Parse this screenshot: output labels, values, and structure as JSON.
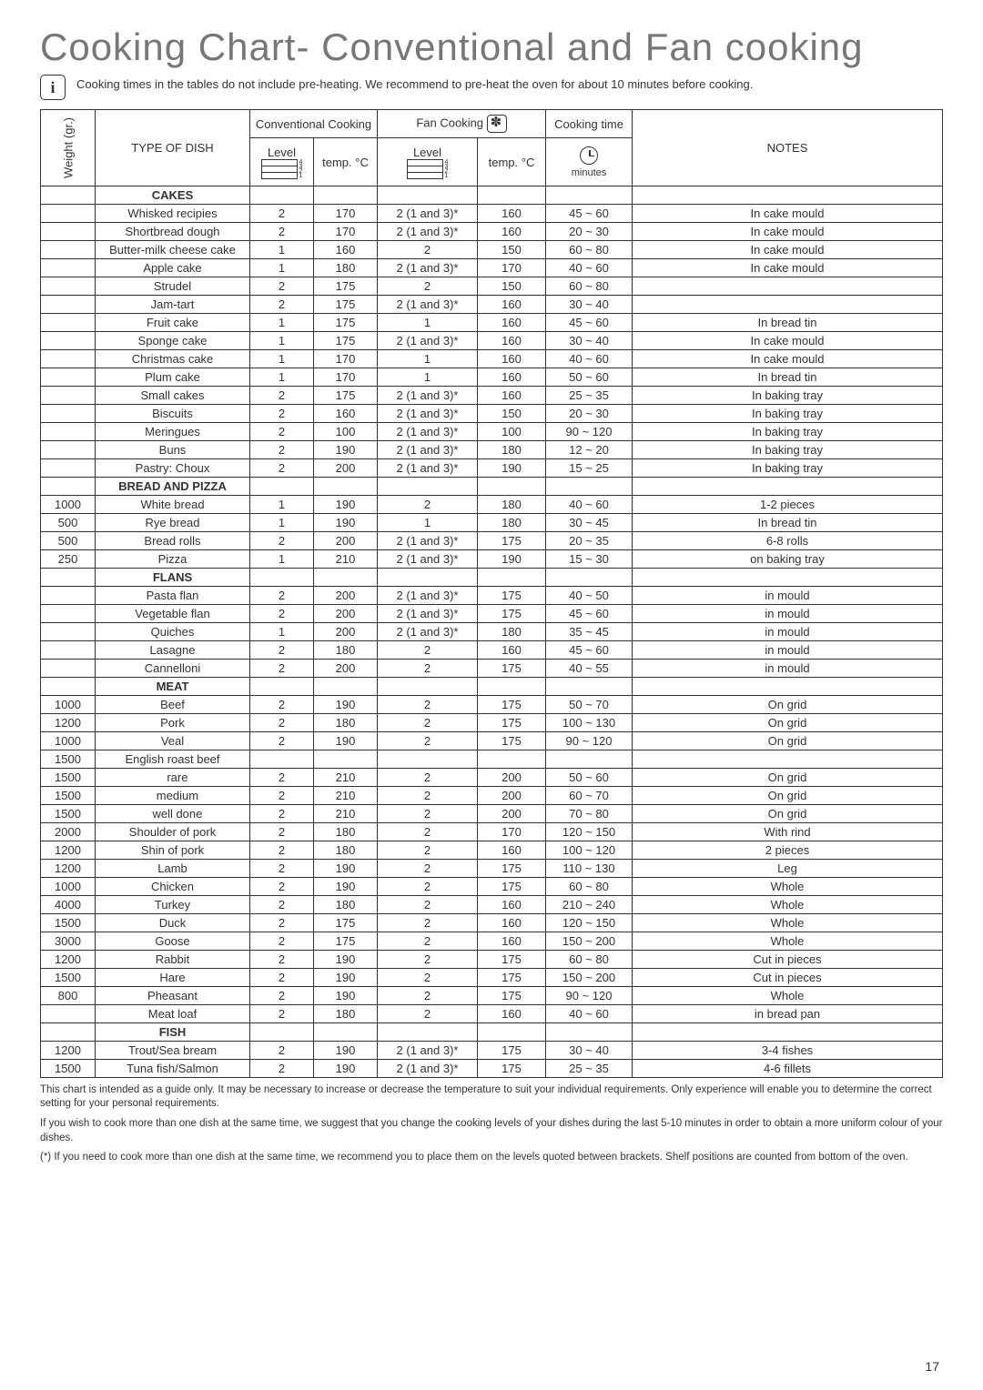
{
  "title": "Cooking Chart- Conventional and Fan cooking",
  "info_text": "Cooking times in the tables do not include pre-heating. We recommend to pre-heat the oven for about 10 minutes before cooking.",
  "headers": {
    "weight": "Weight (gr.)",
    "type": "TYPE OF DISH",
    "conv": "Conventional Cooking",
    "fan": "Fan Cooking",
    "time_top": "Cooking time",
    "notes": "NOTES",
    "level": "Level",
    "temp": "temp. °C",
    "minutes": "minutes"
  },
  "sections": [
    {
      "title": "CAKES",
      "rows": [
        {
          "w": "",
          "d": "Whisked recipies",
          "cl": "2",
          "ct": "170",
          "fl": "2 (1 and 3)*",
          "ft": "160",
          "tm": "45 ~ 60",
          "n": "In cake mould"
        },
        {
          "w": "",
          "d": "Shortbread dough",
          "cl": "2",
          "ct": "170",
          "fl": "2 (1 and 3)*",
          "ft": "160",
          "tm": "20 ~ 30",
          "n": "In cake mould"
        },
        {
          "w": "",
          "d": "Butter-milk cheese cake",
          "cl": "1",
          "ct": "160",
          "fl": "2",
          "ft": "150",
          "tm": "60 ~ 80",
          "n": "In cake mould"
        },
        {
          "w": "",
          "d": "Apple cake",
          "cl": "1",
          "ct": "180",
          "fl": "2 (1 and 3)*",
          "ft": "170",
          "tm": "40 ~ 60",
          "n": "In cake mould"
        },
        {
          "w": "",
          "d": "Strudel",
          "cl": "2",
          "ct": "175",
          "fl": "2",
          "ft": "150",
          "tm": "60 ~ 80",
          "n": ""
        },
        {
          "w": "",
          "d": "Jam-tart",
          "cl": "2",
          "ct": "175",
          "fl": "2 (1 and 3)*",
          "ft": "160",
          "tm": "30 ~ 40",
          "n": ""
        },
        {
          "w": "",
          "d": "Fruit cake",
          "cl": "1",
          "ct": "175",
          "fl": "1",
          "ft": "160",
          "tm": "45 ~ 60",
          "n": "In bread tin"
        },
        {
          "w": "",
          "d": "Sponge cake",
          "cl": "1",
          "ct": "175",
          "fl": "2 (1 and 3)*",
          "ft": "160",
          "tm": "30 ~ 40",
          "n": "In cake mould"
        },
        {
          "w": "",
          "d": "Christmas cake",
          "cl": "1",
          "ct": "170",
          "fl": "1",
          "ft": "160",
          "tm": "40 ~ 60",
          "n": "In cake mould"
        },
        {
          "w": "",
          "d": "Plum cake",
          "cl": "1",
          "ct": "170",
          "fl": "1",
          "ft": "160",
          "tm": "50 ~ 60",
          "n": "In bread tin"
        },
        {
          "w": "",
          "d": "Small cakes",
          "cl": "2",
          "ct": "175",
          "fl": "2 (1 and 3)*",
          "ft": "160",
          "tm": "25 ~ 35",
          "n": "In baking tray"
        },
        {
          "w": "",
          "d": "Biscuits",
          "cl": "2",
          "ct": "160",
          "fl": "2 (1 and 3)*",
          "ft": "150",
          "tm": "20 ~ 30",
          "n": "In baking tray"
        },
        {
          "w": "",
          "d": "Meringues",
          "cl": "2",
          "ct": "100",
          "fl": "2 (1 and 3)*",
          "ft": "100",
          "tm": "90 ~ 120",
          "n": "In baking tray"
        },
        {
          "w": "",
          "d": "Buns",
          "cl": "2",
          "ct": "190",
          "fl": "2 (1 and 3)*",
          "ft": "180",
          "tm": "12 ~ 20",
          "n": "In baking tray"
        },
        {
          "w": "",
          "d": "Pastry: Choux",
          "cl": "2",
          "ct": "200",
          "fl": "2 (1 and 3)*",
          "ft": "190",
          "tm": "15 ~ 25",
          "n": "In baking tray"
        }
      ]
    },
    {
      "title": "BREAD AND PIZZA",
      "rows": [
        {
          "w": "1000",
          "d": "White bread",
          "cl": "1",
          "ct": "190",
          "fl": "2",
          "ft": "180",
          "tm": "40 ~ 60",
          "n": "1-2 pieces"
        },
        {
          "w": "500",
          "d": "Rye bread",
          "cl": "1",
          "ct": "190",
          "fl": "1",
          "ft": "180",
          "tm": "30 ~ 45",
          "n": "In bread tin"
        },
        {
          "w": "500",
          "d": "Bread rolls",
          "cl": "2",
          "ct": "200",
          "fl": "2 (1 and 3)*",
          "ft": "175",
          "tm": "20 ~ 35",
          "n": "6-8 rolls"
        },
        {
          "w": "250",
          "d": "Pizza",
          "cl": "1",
          "ct": "210",
          "fl": "2 (1 and 3)*",
          "ft": "190",
          "tm": "15 ~ 30",
          "n": "on baking tray"
        }
      ]
    },
    {
      "title": "FLANS",
      "rows": [
        {
          "w": "",
          "d": "Pasta flan",
          "cl": "2",
          "ct": "200",
          "fl": "2 (1 and 3)*",
          "ft": "175",
          "tm": "40 ~ 50",
          "n": "in mould"
        },
        {
          "w": "",
          "d": "Vegetable flan",
          "cl": "2",
          "ct": "200",
          "fl": "2 (1 and 3)*",
          "ft": "175",
          "tm": "45 ~ 60",
          "n": "in mould"
        },
        {
          "w": "",
          "d": "Quiches",
          "cl": "1",
          "ct": "200",
          "fl": "2 (1 and 3)*",
          "ft": "180",
          "tm": "35 ~ 45",
          "n": "in mould"
        },
        {
          "w": "",
          "d": "Lasagne",
          "cl": "2",
          "ct": "180",
          "fl": "2",
          "ft": "160",
          "tm": "45 ~ 60",
          "n": "in mould"
        },
        {
          "w": "",
          "d": "Cannelloni",
          "cl": "2",
          "ct": "200",
          "fl": "2",
          "ft": "175",
          "tm": "40 ~ 55",
          "n": "in mould"
        }
      ]
    },
    {
      "title": "MEAT",
      "rows": [
        {
          "w": "1000",
          "d": "Beef",
          "cl": "2",
          "ct": "190",
          "fl": "2",
          "ft": "175",
          "tm": "50 ~ 70",
          "n": "On grid"
        },
        {
          "w": "1200",
          "d": "Pork",
          "cl": "2",
          "ct": "180",
          "fl": "2",
          "ft": "175",
          "tm": "100 ~ 130",
          "n": "On grid"
        },
        {
          "w": "1000",
          "d": "Veal",
          "cl": "2",
          "ct": "190",
          "fl": "2",
          "ft": "175",
          "tm": "90 ~ 120",
          "n": "On grid"
        },
        {
          "w": "1500",
          "d": "English roast beef",
          "cl": "",
          "ct": "",
          "fl": "",
          "ft": "",
          "tm": "",
          "n": ""
        },
        {
          "w": "1500",
          "d": "   rare",
          "cl": "2",
          "ct": "210",
          "fl": "2",
          "ft": "200",
          "tm": "50 ~ 60",
          "n": "On grid"
        },
        {
          "w": "1500",
          "d": "   medium",
          "cl": "2",
          "ct": "210",
          "fl": "2",
          "ft": "200",
          "tm": "60 ~ 70",
          "n": "On grid"
        },
        {
          "w": "1500",
          "d": "   well done",
          "cl": "2",
          "ct": "210",
          "fl": "2",
          "ft": "200",
          "tm": "70 ~ 80",
          "n": "On grid"
        },
        {
          "w": "2000",
          "d": "Shoulder of pork",
          "cl": "2",
          "ct": "180",
          "fl": "2",
          "ft": "170",
          "tm": "120 ~ 150",
          "n": "With rind"
        },
        {
          "w": "1200",
          "d": "Shin of pork",
          "cl": "2",
          "ct": "180",
          "fl": "2",
          "ft": "160",
          "tm": "100 ~ 120",
          "n": "2 pieces"
        },
        {
          "w": "1200",
          "d": "Lamb",
          "cl": "2",
          "ct": "190",
          "fl": "2",
          "ft": "175",
          "tm": "110 ~ 130",
          "n": "Leg"
        },
        {
          "w": "1000",
          "d": "Chicken",
          "cl": "2",
          "ct": "190",
          "fl": "2",
          "ft": "175",
          "tm": "60 ~ 80",
          "n": "Whole"
        },
        {
          "w": "4000",
          "d": "Turkey",
          "cl": "2",
          "ct": "180",
          "fl": "2",
          "ft": "160",
          "tm": "210 ~ 240",
          "n": "Whole"
        },
        {
          "w": "1500",
          "d": "Duck",
          "cl": "2",
          "ct": "175",
          "fl": "2",
          "ft": "160",
          "tm": "120 ~ 150",
          "n": "Whole"
        },
        {
          "w": "3000",
          "d": "Goose",
          "cl": "2",
          "ct": "175",
          "fl": "2",
          "ft": "160",
          "tm": "150 ~ 200",
          "n": "Whole"
        },
        {
          "w": "1200",
          "d": "Rabbit",
          "cl": "2",
          "ct": "190",
          "fl": "2",
          "ft": "175",
          "tm": "60 ~ 80",
          "n": "Cut in pieces"
        },
        {
          "w": "1500",
          "d": "Hare",
          "cl": "2",
          "ct": "190",
          "fl": "2",
          "ft": "175",
          "tm": "150 ~ 200",
          "n": "Cut in pieces"
        },
        {
          "w": "800",
          "d": "Pheasant",
          "cl": "2",
          "ct": "190",
          "fl": "2",
          "ft": "175",
          "tm": "90 ~ 120",
          "n": "Whole"
        },
        {
          "w": "",
          "d": "Meat loaf",
          "cl": "2",
          "ct": "180",
          "fl": "2",
          "ft": "160",
          "tm": "40 ~ 60",
          "n": "in bread pan"
        }
      ]
    },
    {
      "title": "FISH",
      "rows": [
        {
          "w": "1200",
          "d": "Trout/Sea bream",
          "cl": "2",
          "ct": "190",
          "fl": "2 (1 and 3)*",
          "ft": "175",
          "tm": "30 ~ 40",
          "n": "3-4 fishes"
        },
        {
          "w": "1500",
          "d": "Tuna fish/Salmon",
          "cl": "2",
          "ct": "190",
          "fl": "2 (1 and 3)*",
          "ft": "175",
          "tm": "25 ~ 35",
          "n": "4-6 fillets"
        }
      ]
    }
  ],
  "footnotes": [
    "This chart is intended as a guide only. It may be necessary to increase or decrease the temperature to suit your individual requirements. Only experience will enable you to determine the correct setting for your personal requirements.",
    "If you wish to cook more than one dish at the same time, we suggest that you change the cooking levels of your dishes during the last 5-10 minutes in order to obtain a more uniform colour of your dishes.",
    "(*) If you need to cook more than one dish at the same time, we recommend you to place them on the levels quoted between brackets. Shelf positions are counted from bottom of the oven."
  ],
  "page_number": "17"
}
